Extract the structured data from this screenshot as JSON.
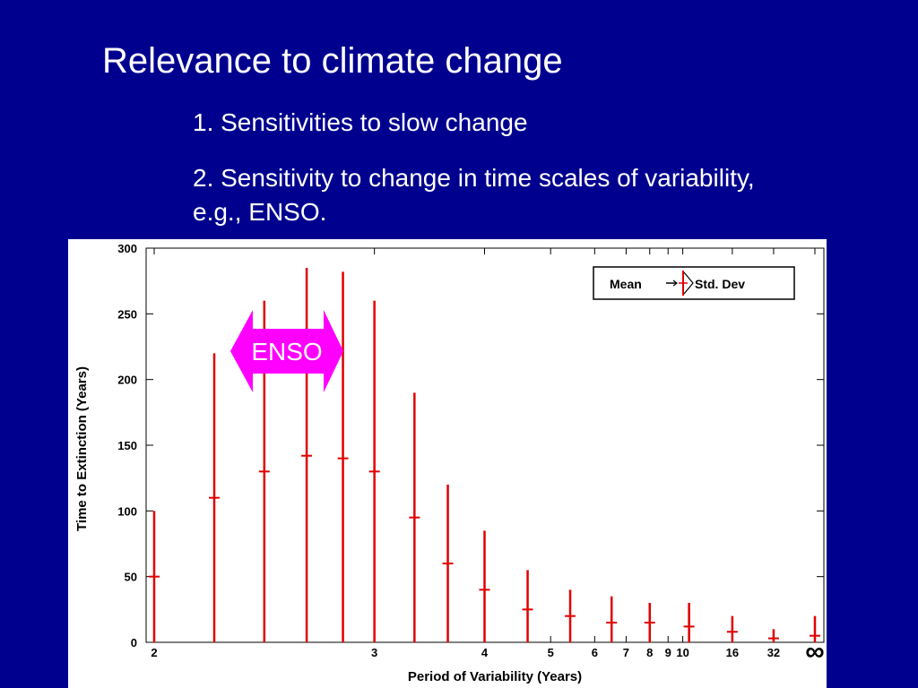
{
  "slide": {
    "title": "Relevance to climate change",
    "bullets": [
      "1.  Sensitivities to slow change",
      "2.  Sensitivity to change in time scales of variability, e.g., ENSO."
    ]
  },
  "chart_data": {
    "type": "errorbar",
    "xlabel": "Period of Variability (Years)",
    "ylabel": "Time to Extinction (Years)",
    "ylim": [
      0,
      300
    ],
    "y_ticks": [
      0,
      50,
      100,
      150,
      200,
      250,
      300
    ],
    "x_scale": "reciprocal",
    "x_ticks": [
      "2",
      "3",
      "4",
      "5",
      "6",
      "7",
      "8",
      "9",
      "10",
      "16",
      "32",
      "∞"
    ],
    "legend": {
      "mean_label": "Mean",
      "std_label": "Std. Dev",
      "position": "top-right"
    },
    "annotation": {
      "text": "ENSO",
      "color": "#ff00ff"
    },
    "bar_color": "#e00000",
    "points": [
      {
        "x": 2.0,
        "mean": 50,
        "low": 0,
        "high": 100
      },
      {
        "x": 2.2,
        "mean": 110,
        "low": 0,
        "high": 220
      },
      {
        "x": 2.4,
        "mean": 130,
        "low": 0,
        "high": 260
      },
      {
        "x": 2.6,
        "mean": 142,
        "low": 0,
        "high": 285
      },
      {
        "x": 2.8,
        "mean": 140,
        "low": 0,
        "high": 282
      },
      {
        "x": 3.0,
        "mean": 130,
        "low": 0,
        "high": 260
      },
      {
        "x": 3.3,
        "mean": 95,
        "low": 0,
        "high": 190
      },
      {
        "x": 3.6,
        "mean": 60,
        "low": 0,
        "high": 120
      },
      {
        "x": 4.0,
        "mean": 40,
        "low": 0,
        "high": 85
      },
      {
        "x": 4.6,
        "mean": 25,
        "low": 0,
        "high": 55
      },
      {
        "x": 5.4,
        "mean": 20,
        "low": 0,
        "high": 40
      },
      {
        "x": 6.5,
        "mean": 15,
        "low": 0,
        "high": 35
      },
      {
        "x": 8.0,
        "mean": 15,
        "low": 0,
        "high": 30
      },
      {
        "x": 10.5,
        "mean": 12,
        "low": 0,
        "high": 30
      },
      {
        "x": 16,
        "mean": 8,
        "low": 0,
        "high": 20
      },
      {
        "x": 32,
        "mean": 3,
        "low": 0,
        "high": 10
      },
      {
        "x": "∞",
        "mean": 5,
        "low": 0,
        "high": 20
      }
    ]
  }
}
